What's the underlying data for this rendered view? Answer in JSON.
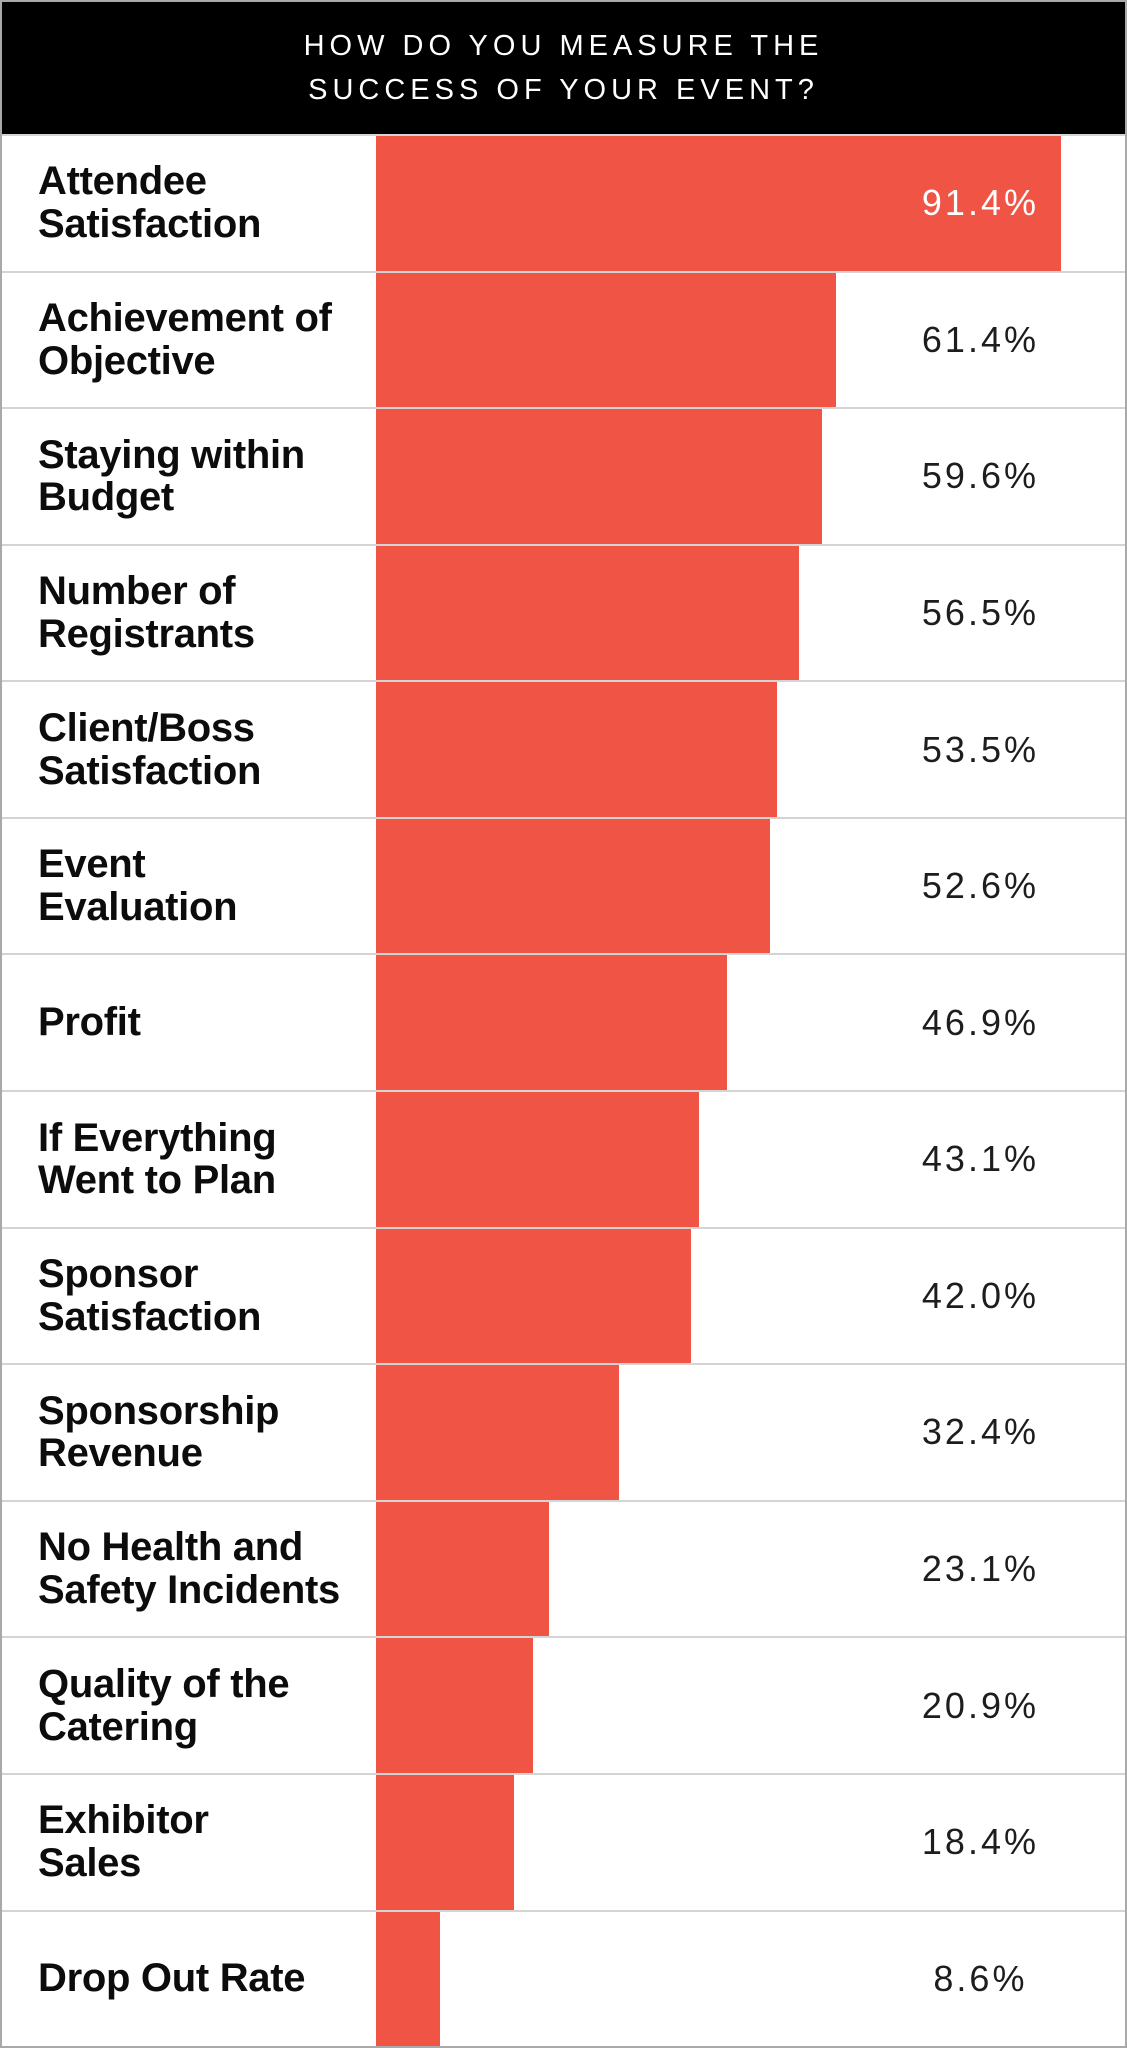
{
  "header": {
    "lines": [
      "HOW DO YOU MEASURE THE",
      "SUCCESS OF YOUR EVENT?"
    ]
  },
  "colors": {
    "bar": "#EF5445",
    "header_bg": "#000000",
    "header_text": "#FFFFFF",
    "divider": "#D4D4D4",
    "outer_border": "#A9A9A9",
    "value_text": "#1D1D1D",
    "value_text_inside_bar": "#FFFFFF",
    "label_text": "#0C0C0C"
  },
  "rows": [
    {
      "label": "Attendee\nSatisfaction",
      "value": "91.4%",
      "pct": 91.4,
      "value_inside": true
    },
    {
      "label": "Achievement of\nObjective",
      "value": "61.4%",
      "pct": 61.4,
      "value_inside": false
    },
    {
      "label": "Staying within\nBudget",
      "value": "59.6%",
      "pct": 59.6,
      "value_inside": false
    },
    {
      "label": "Number of\nRegistrants",
      "value": "56.5%",
      "pct": 56.5,
      "value_inside": false
    },
    {
      "label": "Client/Boss\nSatisfaction",
      "value": "53.5%",
      "pct": 53.5,
      "value_inside": false
    },
    {
      "label": "Event\nEvaluation",
      "value": "52.6%",
      "pct": 52.6,
      "value_inside": false
    },
    {
      "label": "Profit",
      "value": "46.9%",
      "pct": 46.9,
      "value_inside": false
    },
    {
      "label": "If Everything\nWent to Plan",
      "value": "43.1%",
      "pct": 43.1,
      "value_inside": false
    },
    {
      "label": "Sponsor\nSatisfaction",
      "value": "42.0%",
      "pct": 42.0,
      "value_inside": false
    },
    {
      "label": "Sponsorship\nRevenue",
      "value": "32.4%",
      "pct": 32.4,
      "value_inside": false
    },
    {
      "label": "No Health and\nSafety Incidents",
      "value": "23.1%",
      "pct": 23.1,
      "value_inside": false
    },
    {
      "label": "Quality of the\nCatering",
      "value": "20.9%",
      "pct": 20.9,
      "value_inside": false
    },
    {
      "label": "Exhibitor\nSales",
      "value": "18.4%",
      "pct": 18.4,
      "value_inside": false
    },
    {
      "label": "Drop Out Rate",
      "value": "8.6%",
      "pct": 8.6,
      "value_inside": false
    }
  ],
  "chart_data": {
    "type": "bar",
    "orientation": "horizontal",
    "title": "HOW DO YOU MEASURE THE SUCCESS OF YOUR EVENT?",
    "categories": [
      "Attendee Satisfaction",
      "Achievement of Objective",
      "Staying within Budget",
      "Number of Registrants",
      "Client/Boss Satisfaction",
      "Event Evaluation",
      "Profit",
      "If Everything Went to Plan",
      "Sponsor Satisfaction",
      "Sponsorship Revenue",
      "No Health and Safety Incidents",
      "Quality of the Catering",
      "Exhibitor Sales",
      "Drop Out Rate"
    ],
    "values": [
      91.4,
      61.4,
      59.6,
      56.5,
      53.5,
      52.6,
      46.9,
      43.1,
      42.0,
      32.4,
      23.1,
      20.9,
      18.4,
      8.6
    ],
    "value_suffix": "%",
    "xlabel": "",
    "ylabel": "",
    "xlim": [
      0,
      100
    ],
    "grid": false,
    "legend": false,
    "bar_color": "#EF5445",
    "data_labels": [
      "91.4%",
      "61.4%",
      "59.6%",
      "56.5%",
      "53.5%",
      "52.6%",
      "46.9%",
      "43.1%",
      "42.0%",
      "32.4%",
      "23.1%",
      "20.9%",
      "18.4%",
      "8.6%"
    ]
  }
}
